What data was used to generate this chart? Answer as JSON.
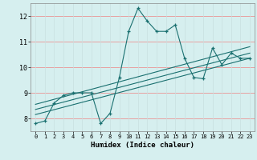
{
  "xlabel": "Humidex (Indice chaleur)",
  "ylabel": "",
  "background_color": "#d6efef",
  "line_color": "#1a7070",
  "xlim": [
    -0.5,
    23.5
  ],
  "ylim": [
    7.5,
    12.5
  ],
  "xticks": [
    0,
    1,
    2,
    3,
    4,
    5,
    6,
    7,
    8,
    9,
    10,
    11,
    12,
    13,
    14,
    15,
    16,
    17,
    18,
    19,
    20,
    21,
    22,
    23
  ],
  "yticks": [
    8,
    9,
    10,
    11,
    12
  ],
  "line1_x": [
    0,
    1,
    2,
    3,
    4,
    5,
    6,
    7,
    8,
    9,
    10,
    11,
    12,
    13,
    14,
    15,
    16,
    17,
    18,
    19,
    20,
    21,
    22,
    23
  ],
  "line1_y": [
    7.8,
    7.9,
    8.6,
    8.9,
    9.0,
    9.0,
    9.0,
    7.8,
    8.2,
    9.6,
    11.4,
    12.3,
    11.8,
    11.4,
    11.4,
    11.65,
    10.35,
    9.6,
    9.55,
    10.75,
    10.1,
    10.55,
    10.35,
    10.35
  ],
  "line2_x": [
    0,
    23
  ],
  "line2_y": [
    8.55,
    10.8
  ],
  "line3_x": [
    0,
    23
  ],
  "line3_y": [
    8.35,
    10.55
  ],
  "line4_x": [
    0,
    23
  ],
  "line4_y": [
    8.15,
    10.35
  ],
  "hgrid_color": "#e8a0a0",
  "vgrid_color": "#c8e0e0"
}
